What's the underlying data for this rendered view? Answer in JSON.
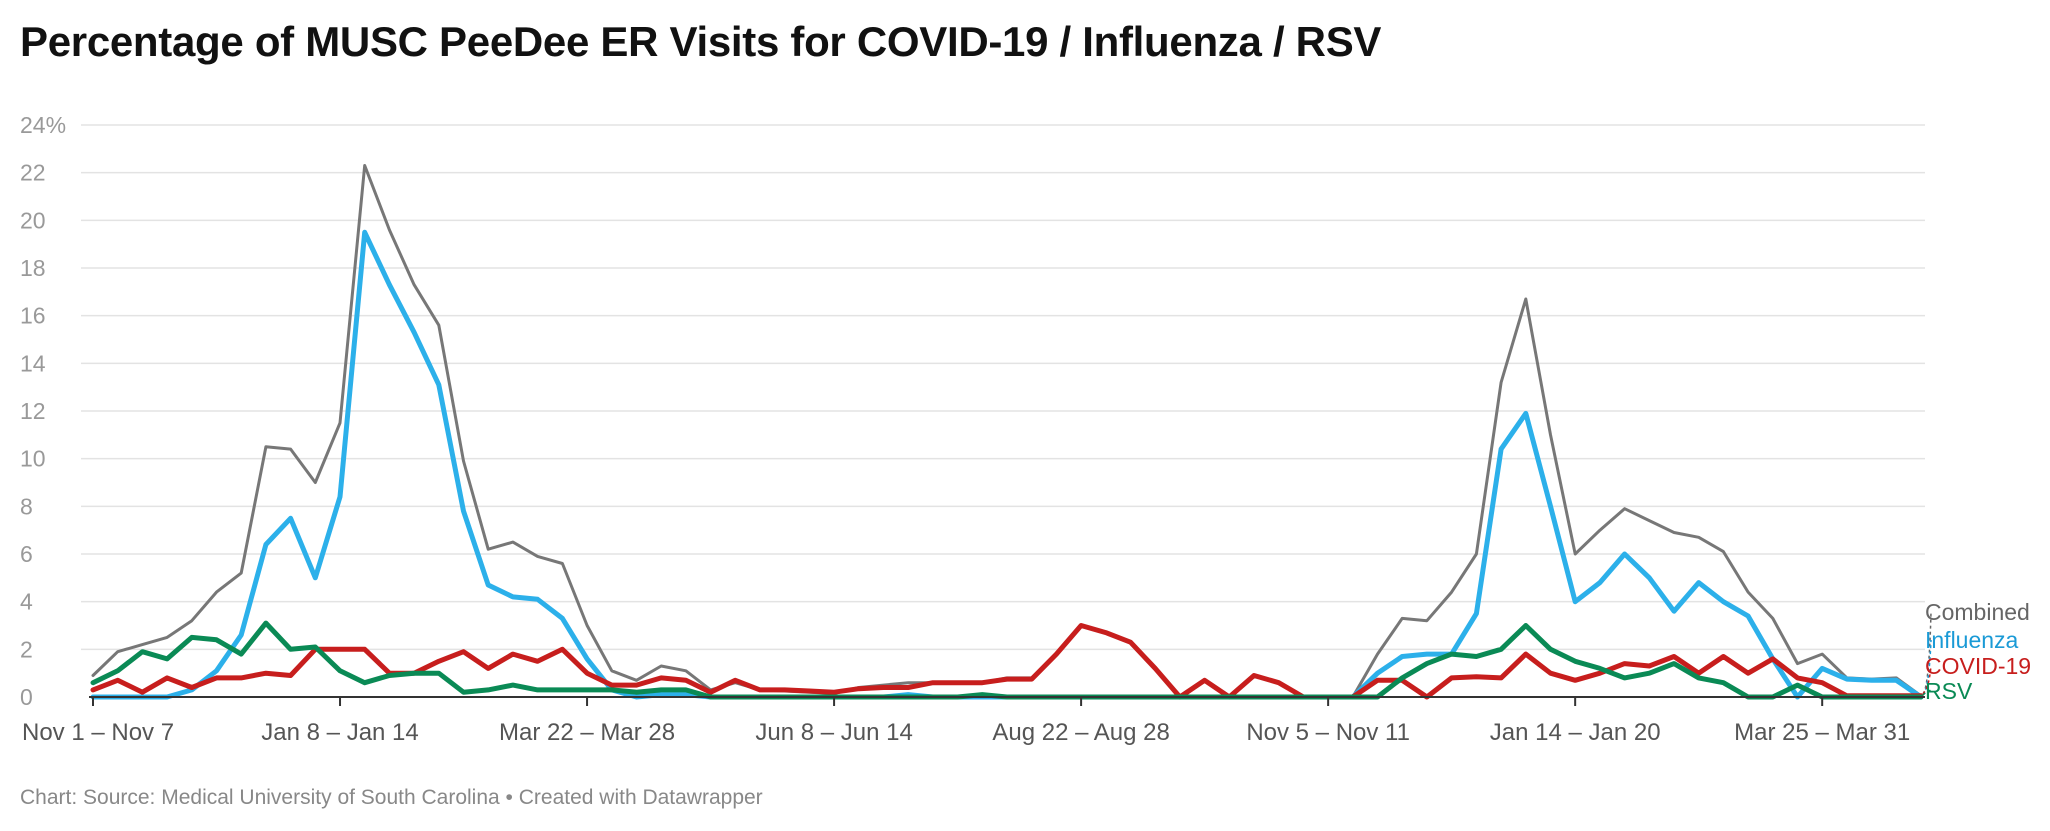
{
  "title": "Percentage of MUSC PeeDee ER Visits for COVID-19 / Influenza / RSV",
  "footer": "Chart: Source: Medical University of South Carolina • Created with Datawrapper",
  "chart_data": {
    "type": "line",
    "title": "Percentage of MUSC PeeDee ER Visits for COVID-19 / Influenza / RSV",
    "xlabel": "",
    "ylabel": "",
    "ylim": [
      0,
      24
    ],
    "yticks": [
      0,
      2,
      4,
      6,
      8,
      10,
      12,
      14,
      16,
      18,
      20,
      22,
      24
    ],
    "ytick_labels": [
      "0",
      "2",
      "4",
      "6",
      "8",
      "10",
      "12",
      "14",
      "16",
      "18",
      "20",
      "22",
      "24%"
    ],
    "grid": true,
    "legend_position": "right, at line ends",
    "x_tick_labels": [
      {
        "index": 0,
        "label": "Nov 1 – Nov 7"
      },
      {
        "index": 10,
        "label": "Jan 8 – Jan 14"
      },
      {
        "index": 20,
        "label": "Mar 22 – Mar 28"
      },
      {
        "index": 30,
        "label": "Jun 8 – Jun 14"
      },
      {
        "index": 40,
        "label": "Aug 22 – Aug 28"
      },
      {
        "index": 50,
        "label": "Nov 5 – Nov 11"
      },
      {
        "index": 60,
        "label": "Jan 14 – Jan 20"
      },
      {
        "index": 70,
        "label": "Mar 25 – Mar 31"
      }
    ],
    "series": [
      {
        "name": "Combined",
        "color": "#777777",
        "values": [
          0.9,
          1.9,
          2.2,
          2.5,
          3.2,
          4.4,
          5.2,
          10.5,
          10.4,
          9.0,
          11.5,
          22.3,
          19.6,
          17.3,
          15.6,
          9.9,
          6.2,
          6.5,
          5.9,
          5.6,
          3.0,
          1.1,
          0.7,
          1.3,
          1.1,
          0.3,
          0.6,
          0.3,
          0.25,
          0.2,
          0.15,
          0.4,
          0.5,
          0.6,
          0.6,
          0.6,
          0.6,
          0.8,
          0.8,
          1.8,
          3.0,
          2.7,
          2.3,
          1.2,
          0.0,
          0.7,
          0.0,
          0.9,
          0.6,
          0.0,
          0.0,
          0.0,
          1.8,
          3.3,
          3.2,
          4.4,
          6.0,
          13.2,
          16.7,
          11.0,
          6.0,
          7.0,
          7.9,
          7.4,
          6.9,
          6.7,
          6.1,
          4.4,
          3.3,
          1.4,
          1.8,
          0.8,
          0.75,
          0.8,
          0.05
        ]
      },
      {
        "name": "Influenza",
        "color": "#2cb0ea",
        "values": [
          0.0,
          0.0,
          0.0,
          0.0,
          0.3,
          1.1,
          2.6,
          6.4,
          7.5,
          5.0,
          8.4,
          19.5,
          17.3,
          15.3,
          13.1,
          7.8,
          4.7,
          4.2,
          4.1,
          3.3,
          1.6,
          0.3,
          0.0,
          0.1,
          0.1,
          0.0,
          0.0,
          0.0,
          0.0,
          0.0,
          0.0,
          0.0,
          0.0,
          0.1,
          0.0,
          0.0,
          0.0,
          0.0,
          0.0,
          0.0,
          0.0,
          0.0,
          0.0,
          0.0,
          0.0,
          0.0,
          0.0,
          0.0,
          0.0,
          0.0,
          0.0,
          0.0,
          1.0,
          1.7,
          1.8,
          1.8,
          3.5,
          10.4,
          11.9,
          8.0,
          4.0,
          4.8,
          6.0,
          5.0,
          3.6,
          4.8,
          4.0,
          3.4,
          1.6,
          0.0,
          1.2,
          0.75,
          0.7,
          0.7,
          0.0
        ]
      },
      {
        "name": "COVID-19",
        "color": "#c71e1d",
        "values": [
          0.3,
          0.7,
          0.2,
          0.8,
          0.4,
          0.8,
          0.8,
          1.0,
          0.9,
          2.0,
          2.0,
          2.0,
          1.0,
          1.0,
          1.5,
          1.9,
          1.2,
          1.8,
          1.5,
          2.0,
          1.0,
          0.5,
          0.5,
          0.8,
          0.7,
          0.2,
          0.7,
          0.3,
          0.3,
          0.25,
          0.2,
          0.35,
          0.4,
          0.4,
          0.6,
          0.6,
          0.6,
          0.75,
          0.75,
          1.8,
          3.0,
          2.7,
          2.3,
          1.2,
          0.0,
          0.7,
          0.0,
          0.9,
          0.6,
          0.0,
          0.0,
          0.0,
          0.7,
          0.7,
          0.0,
          0.8,
          0.85,
          0.8,
          1.8,
          1.0,
          0.7,
          1.0,
          1.4,
          1.3,
          1.7,
          1.0,
          1.7,
          1.0,
          1.6,
          0.8,
          0.6,
          0.05,
          0.05,
          0.05,
          0.05
        ]
      },
      {
        "name": "RSV",
        "color": "#0a8a55",
        "values": [
          0.6,
          1.1,
          1.9,
          1.6,
          2.5,
          2.4,
          1.8,
          3.1,
          2.0,
          2.1,
          1.1,
          0.6,
          0.9,
          1.0,
          1.0,
          0.2,
          0.3,
          0.5,
          0.3,
          0.3,
          0.3,
          0.3,
          0.2,
          0.3,
          0.3,
          0.0,
          0.0,
          0.0,
          0.0,
          0.0,
          0.0,
          0.0,
          0.0,
          0.0,
          0.0,
          0.0,
          0.1,
          0.0,
          0.0,
          0.0,
          0.0,
          0.0,
          0.0,
          0.0,
          0.0,
          0.0,
          0.0,
          0.0,
          0.0,
          0.0,
          0.0,
          0.0,
          0.0,
          0.8,
          1.4,
          1.8,
          1.7,
          2.0,
          3.0,
          2.0,
          1.5,
          1.2,
          0.8,
          1.0,
          1.4,
          0.8,
          0.6,
          0.0,
          0.0,
          0.5,
          0.0,
          0.0,
          0.0,
          0.0,
          0.0
        ]
      }
    ]
  }
}
